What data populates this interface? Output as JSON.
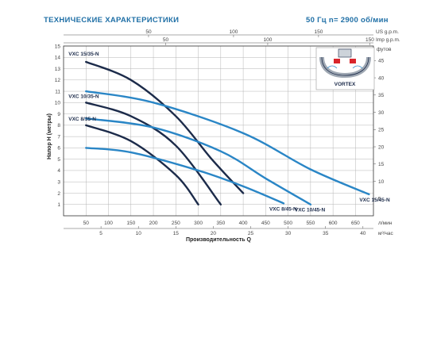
{
  "chart_data": {
    "type": "line",
    "title": "ТЕХНИЧЕСКИЕ ХАРАКТЕРИСТИКИ",
    "subtitle": "50 Гц  n= 2900 об/мин",
    "xlabel": "Производительность  Q",
    "ylabel": "Напор  H (метры)",
    "x_unit": "л/мин",
    "xlim": [
      0,
      690
    ],
    "ylim": [
      0,
      15
    ],
    "x_ticks": [
      50,
      100,
      150,
      200,
      250,
      300,
      350,
      400,
      450,
      500,
      550,
      600,
      650
    ],
    "y_ticks": [
      1,
      2,
      3,
      4,
      5,
      6,
      7,
      8,
      9,
      10,
      11,
      12,
      13,
      14,
      15
    ],
    "secondary_x_bottom": {
      "unit": "м³/час",
      "ticks": [
        5,
        10,
        15,
        20,
        25,
        30,
        35,
        40
      ]
    },
    "secondary_x_top_usgpm": {
      "unit": "US g.p.m.",
      "ticks": [
        50,
        100,
        150
      ]
    },
    "secondary_x_top_impgpm": {
      "unit": "Imp g.p.m.",
      "ticks": [
        50,
        100,
        150
      ]
    },
    "secondary_y_right": {
      "unit": "футов",
      "ticks": [
        5,
        10,
        15,
        20,
        25,
        30,
        35,
        40,
        45
      ]
    },
    "grid": true,
    "series": [
      {
        "name": "VXC 15/35-N",
        "x": [
          50,
          150,
          250,
          330,
          400
        ],
        "y": [
          13.6,
          12.0,
          8.8,
          5.0,
          2.0
        ]
      },
      {
        "name": "VXC 10/35-N",
        "x": [
          50,
          150,
          250,
          350
        ],
        "y": [
          10.0,
          8.8,
          6.2,
          1.0
        ]
      },
      {
        "name": "VXC  8/35-N",
        "x": [
          50,
          150,
          250,
          300
        ],
        "y": [
          8.0,
          6.6,
          3.6,
          1.0
        ]
      },
      {
        "name": "VXC 15/45-N",
        "x": [
          50,
          200,
          400,
          550,
          680
        ],
        "y": [
          11.0,
          10.0,
          7.3,
          4.1,
          1.9
        ]
      },
      {
        "name": "VXC 10/45-N",
        "x": [
          50,
          200,
          350,
          450,
          550
        ],
        "y": [
          8.6,
          7.8,
          5.7,
          3.3,
          1.0
        ]
      },
      {
        "name": "VXC  8/45-N",
        "x": [
          50,
          150,
          300,
          400,
          490
        ],
        "y": [
          6.0,
          5.6,
          4.0,
          2.6,
          1.1
        ]
      }
    ],
    "colors": {
      "VXC 15/35-N": "#1c2b4a",
      "VXC 10/35-N": "#1c2b4a",
      "VXC  8/35-N": "#1c2b4a",
      "VXC 15/45-N": "#2a86c6",
      "VXC 10/45-N": "#2a86c6",
      "VXC  8/45-N": "#2a86c6"
    }
  },
  "inset": {
    "label": "VORTEX"
  }
}
